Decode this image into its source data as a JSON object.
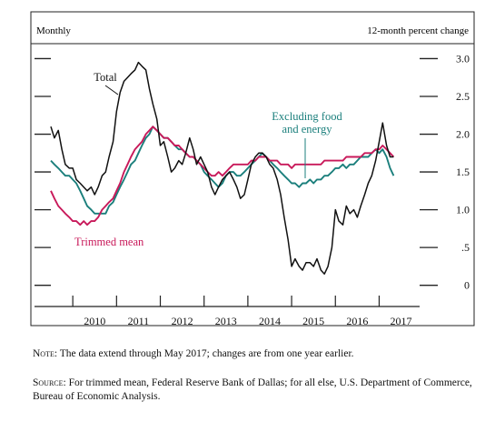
{
  "chart_data": {
    "type": "line",
    "header_left": "Monthly",
    "header_right": "12-month percent change",
    "yticks": [
      {
        "v": 3.0,
        "label": "3.0"
      },
      {
        "v": 2.5,
        "label": "2.5"
      },
      {
        "v": 2.0,
        "label": "2.0"
      },
      {
        "v": 1.5,
        "label": "1.5"
      },
      {
        "v": 1.0,
        "label": "1.0"
      },
      {
        "v": 0.5,
        "label": ".5"
      },
      {
        "v": 0.0,
        "label": "0"
      }
    ],
    "ylim": [
      -0.1,
      3.15
    ],
    "years": [
      "2010",
      "2011",
      "2012",
      "2013",
      "2014",
      "2015",
      "2016",
      "2017"
    ],
    "xlim": [
      2009.25,
      2017.8
    ],
    "series": [
      {
        "name": "Total",
        "color": "#111111",
        "points": [
          [
            2009.5,
            2.1
          ],
          [
            2009.58,
            1.95
          ],
          [
            2009.67,
            2.05
          ],
          [
            2009.75,
            1.8
          ],
          [
            2009.83,
            1.6
          ],
          [
            2009.92,
            1.55
          ],
          [
            2010.0,
            1.55
          ],
          [
            2010.08,
            1.4
          ],
          [
            2010.17,
            1.35
          ],
          [
            2010.25,
            1.3
          ],
          [
            2010.33,
            1.25
          ],
          [
            2010.42,
            1.3
          ],
          [
            2010.5,
            1.2
          ],
          [
            2010.58,
            1.3
          ],
          [
            2010.67,
            1.45
          ],
          [
            2010.75,
            1.5
          ],
          [
            2010.83,
            1.7
          ],
          [
            2010.92,
            1.9
          ],
          [
            2011.0,
            2.3
          ],
          [
            2011.08,
            2.55
          ],
          [
            2011.17,
            2.7
          ],
          [
            2011.25,
            2.75
          ],
          [
            2011.33,
            2.8
          ],
          [
            2011.42,
            2.85
          ],
          [
            2011.5,
            2.95
          ],
          [
            2011.58,
            2.9
          ],
          [
            2011.67,
            2.85
          ],
          [
            2011.75,
            2.6
          ],
          [
            2011.83,
            2.4
          ],
          [
            2011.92,
            2.2
          ],
          [
            2012.0,
            1.85
          ],
          [
            2012.08,
            1.9
          ],
          [
            2012.17,
            1.7
          ],
          [
            2012.25,
            1.5
          ],
          [
            2012.33,
            1.55
          ],
          [
            2012.42,
            1.65
          ],
          [
            2012.5,
            1.6
          ],
          [
            2012.58,
            1.75
          ],
          [
            2012.67,
            1.95
          ],
          [
            2012.75,
            1.8
          ],
          [
            2012.83,
            1.6
          ],
          [
            2012.92,
            1.7
          ],
          [
            2013.0,
            1.6
          ],
          [
            2013.08,
            1.5
          ],
          [
            2013.17,
            1.3
          ],
          [
            2013.25,
            1.2
          ],
          [
            2013.33,
            1.3
          ],
          [
            2013.42,
            1.4
          ],
          [
            2013.5,
            1.45
          ],
          [
            2013.58,
            1.5
          ],
          [
            2013.67,
            1.4
          ],
          [
            2013.75,
            1.3
          ],
          [
            2013.83,
            1.15
          ],
          [
            2013.92,
            1.2
          ],
          [
            2014.0,
            1.4
          ],
          [
            2014.08,
            1.6
          ],
          [
            2014.17,
            1.7
          ],
          [
            2014.25,
            1.75
          ],
          [
            2014.33,
            1.75
          ],
          [
            2014.42,
            1.7
          ],
          [
            2014.5,
            1.6
          ],
          [
            2014.58,
            1.55
          ],
          [
            2014.67,
            1.4
          ],
          [
            2014.75,
            1.2
          ],
          [
            2014.83,
            0.9
          ],
          [
            2014.92,
            0.6
          ],
          [
            2015.0,
            0.25
          ],
          [
            2015.08,
            0.35
          ],
          [
            2015.17,
            0.25
          ],
          [
            2015.25,
            0.2
          ],
          [
            2015.33,
            0.3
          ],
          [
            2015.42,
            0.3
          ],
          [
            2015.5,
            0.25
          ],
          [
            2015.58,
            0.35
          ],
          [
            2015.67,
            0.2
          ],
          [
            2015.75,
            0.15
          ],
          [
            2015.83,
            0.25
          ],
          [
            2015.92,
            0.5
          ],
          [
            2016.0,
            1.0
          ],
          [
            2016.08,
            0.85
          ],
          [
            2016.17,
            0.8
          ],
          [
            2016.25,
            1.05
          ],
          [
            2016.33,
            0.95
          ],
          [
            2016.42,
            1.0
          ],
          [
            2016.5,
            0.9
          ],
          [
            2016.58,
            1.05
          ],
          [
            2016.67,
            1.2
          ],
          [
            2016.75,
            1.35
          ],
          [
            2016.83,
            1.45
          ],
          [
            2016.92,
            1.65
          ],
          [
            2017.0,
            1.9
          ],
          [
            2017.08,
            2.15
          ],
          [
            2017.17,
            1.85
          ],
          [
            2017.25,
            1.7
          ],
          [
            2017.33,
            1.7
          ]
        ]
      },
      {
        "name": "Excluding food and energy",
        "color": "#1b7f7c",
        "points": [
          [
            2009.5,
            1.65
          ],
          [
            2009.58,
            1.6
          ],
          [
            2009.67,
            1.55
          ],
          [
            2009.75,
            1.5
          ],
          [
            2009.83,
            1.45
          ],
          [
            2009.92,
            1.45
          ],
          [
            2010.0,
            1.4
          ],
          [
            2010.08,
            1.35
          ],
          [
            2010.17,
            1.25
          ],
          [
            2010.25,
            1.15
          ],
          [
            2010.33,
            1.05
          ],
          [
            2010.42,
            1.0
          ],
          [
            2010.5,
            0.95
          ],
          [
            2010.58,
            0.95
          ],
          [
            2010.67,
            0.95
          ],
          [
            2010.75,
            0.95
          ],
          [
            2010.83,
            1.05
          ],
          [
            2010.92,
            1.1
          ],
          [
            2011.0,
            1.2
          ],
          [
            2011.08,
            1.3
          ],
          [
            2011.17,
            1.4
          ],
          [
            2011.25,
            1.5
          ],
          [
            2011.33,
            1.6
          ],
          [
            2011.42,
            1.65
          ],
          [
            2011.5,
            1.75
          ],
          [
            2011.58,
            1.85
          ],
          [
            2011.67,
            1.95
          ],
          [
            2011.75,
            2.0
          ],
          [
            2011.83,
            2.1
          ],
          [
            2011.92,
            2.05
          ],
          [
            2012.0,
            2.0
          ],
          [
            2012.08,
            1.95
          ],
          [
            2012.17,
            1.95
          ],
          [
            2012.25,
            1.9
          ],
          [
            2012.33,
            1.85
          ],
          [
            2012.42,
            1.8
          ],
          [
            2012.5,
            1.8
          ],
          [
            2012.58,
            1.75
          ],
          [
            2012.67,
            1.7
          ],
          [
            2012.75,
            1.7
          ],
          [
            2012.83,
            1.65
          ],
          [
            2012.92,
            1.6
          ],
          [
            2013.0,
            1.5
          ],
          [
            2013.08,
            1.45
          ],
          [
            2013.17,
            1.4
          ],
          [
            2013.25,
            1.35
          ],
          [
            2013.33,
            1.3
          ],
          [
            2013.42,
            1.35
          ],
          [
            2013.5,
            1.45
          ],
          [
            2013.58,
            1.5
          ],
          [
            2013.67,
            1.5
          ],
          [
            2013.75,
            1.45
          ],
          [
            2013.83,
            1.45
          ],
          [
            2013.92,
            1.5
          ],
          [
            2014.0,
            1.55
          ],
          [
            2014.08,
            1.6
          ],
          [
            2014.17,
            1.65
          ],
          [
            2014.25,
            1.7
          ],
          [
            2014.33,
            1.75
          ],
          [
            2014.42,
            1.7
          ],
          [
            2014.5,
            1.65
          ],
          [
            2014.58,
            1.6
          ],
          [
            2014.67,
            1.55
          ],
          [
            2014.75,
            1.5
          ],
          [
            2014.83,
            1.45
          ],
          [
            2014.92,
            1.4
          ],
          [
            2015.0,
            1.35
          ],
          [
            2015.08,
            1.35
          ],
          [
            2015.17,
            1.3
          ],
          [
            2015.25,
            1.35
          ],
          [
            2015.33,
            1.35
          ],
          [
            2015.42,
            1.4
          ],
          [
            2015.5,
            1.35
          ],
          [
            2015.58,
            1.4
          ],
          [
            2015.67,
            1.4
          ],
          [
            2015.75,
            1.45
          ],
          [
            2015.83,
            1.45
          ],
          [
            2015.92,
            1.5
          ],
          [
            2016.0,
            1.55
          ],
          [
            2016.08,
            1.55
          ],
          [
            2016.17,
            1.6
          ],
          [
            2016.25,
            1.55
          ],
          [
            2016.33,
            1.6
          ],
          [
            2016.42,
            1.6
          ],
          [
            2016.5,
            1.65
          ],
          [
            2016.58,
            1.7
          ],
          [
            2016.67,
            1.7
          ],
          [
            2016.75,
            1.7
          ],
          [
            2016.83,
            1.75
          ],
          [
            2016.92,
            1.8
          ],
          [
            2017.0,
            1.75
          ],
          [
            2017.08,
            1.8
          ],
          [
            2017.17,
            1.7
          ],
          [
            2017.25,
            1.55
          ],
          [
            2017.33,
            1.45
          ]
        ]
      },
      {
        "name": "Trimmed mean",
        "color": "#c8195a",
        "points": [
          [
            2009.5,
            1.25
          ],
          [
            2009.58,
            1.15
          ],
          [
            2009.67,
            1.05
          ],
          [
            2009.75,
            1.0
          ],
          [
            2009.83,
            0.95
          ],
          [
            2009.92,
            0.9
          ],
          [
            2010.0,
            0.85
          ],
          [
            2010.08,
            0.85
          ],
          [
            2010.17,
            0.8
          ],
          [
            2010.25,
            0.85
          ],
          [
            2010.33,
            0.8
          ],
          [
            2010.42,
            0.85
          ],
          [
            2010.5,
            0.85
          ],
          [
            2010.58,
            0.9
          ],
          [
            2010.67,
            1.0
          ],
          [
            2010.75,
            1.05
          ],
          [
            2010.83,
            1.1
          ],
          [
            2010.92,
            1.15
          ],
          [
            2011.0,
            1.25
          ],
          [
            2011.08,
            1.35
          ],
          [
            2011.17,
            1.5
          ],
          [
            2011.25,
            1.6
          ],
          [
            2011.33,
            1.7
          ],
          [
            2011.42,
            1.8
          ],
          [
            2011.5,
            1.85
          ],
          [
            2011.58,
            1.9
          ],
          [
            2011.67,
            2.0
          ],
          [
            2011.75,
            2.05
          ],
          [
            2011.83,
            2.1
          ],
          [
            2011.92,
            2.05
          ],
          [
            2012.0,
            2.0
          ],
          [
            2012.08,
            1.95
          ],
          [
            2012.17,
            1.95
          ],
          [
            2012.25,
            1.9
          ],
          [
            2012.33,
            1.85
          ],
          [
            2012.42,
            1.85
          ],
          [
            2012.5,
            1.8
          ],
          [
            2012.58,
            1.75
          ],
          [
            2012.67,
            1.7
          ],
          [
            2012.75,
            1.7
          ],
          [
            2012.83,
            1.65
          ],
          [
            2012.92,
            1.6
          ],
          [
            2013.0,
            1.55
          ],
          [
            2013.08,
            1.5
          ],
          [
            2013.17,
            1.45
          ],
          [
            2013.25,
            1.45
          ],
          [
            2013.33,
            1.5
          ],
          [
            2013.42,
            1.45
          ],
          [
            2013.5,
            1.5
          ],
          [
            2013.58,
            1.55
          ],
          [
            2013.67,
            1.6
          ],
          [
            2013.75,
            1.6
          ],
          [
            2013.83,
            1.6
          ],
          [
            2013.92,
            1.6
          ],
          [
            2014.0,
            1.6
          ],
          [
            2014.08,
            1.65
          ],
          [
            2014.17,
            1.65
          ],
          [
            2014.25,
            1.7
          ],
          [
            2014.33,
            1.7
          ],
          [
            2014.42,
            1.7
          ],
          [
            2014.5,
            1.65
          ],
          [
            2014.58,
            1.65
          ],
          [
            2014.67,
            1.65
          ],
          [
            2014.75,
            1.6
          ],
          [
            2014.83,
            1.6
          ],
          [
            2014.92,
            1.6
          ],
          [
            2015.0,
            1.55
          ],
          [
            2015.08,
            1.6
          ],
          [
            2015.17,
            1.6
          ],
          [
            2015.25,
            1.6
          ],
          [
            2015.33,
            1.6
          ],
          [
            2015.42,
            1.6
          ],
          [
            2015.5,
            1.6
          ],
          [
            2015.58,
            1.6
          ],
          [
            2015.67,
            1.6
          ],
          [
            2015.75,
            1.65
          ],
          [
            2015.83,
            1.65
          ],
          [
            2015.92,
            1.65
          ],
          [
            2016.0,
            1.65
          ],
          [
            2016.08,
            1.65
          ],
          [
            2016.17,
            1.65
          ],
          [
            2016.25,
            1.7
          ],
          [
            2016.33,
            1.7
          ],
          [
            2016.42,
            1.7
          ],
          [
            2016.5,
            1.7
          ],
          [
            2016.58,
            1.7
          ],
          [
            2016.67,
            1.75
          ],
          [
            2016.75,
            1.75
          ],
          [
            2016.83,
            1.75
          ],
          [
            2016.92,
            1.8
          ],
          [
            2017.0,
            1.8
          ],
          [
            2017.08,
            1.85
          ],
          [
            2017.17,
            1.8
          ],
          [
            2017.25,
            1.75
          ],
          [
            2017.33,
            1.7
          ]
        ]
      }
    ],
    "annotations": [
      {
        "series": "Total",
        "text": [
          "Total"
        ]
      },
      {
        "series": "Excluding food and energy",
        "text": [
          "Excluding food",
          "and energy"
        ]
      },
      {
        "series": "Trimmed mean",
        "text": [
          "Trimmed mean"
        ]
      }
    ]
  },
  "notes": {
    "note_label": "Note:",
    "note_text": " The data extend through May 2017; changes are from one year earlier.",
    "source_label": "Source:",
    "source_text": " For trimmed mean, Federal Reserve Bank of Dallas; for all else, U.S. Department of Commerce, Bureau of Economic Analysis."
  }
}
